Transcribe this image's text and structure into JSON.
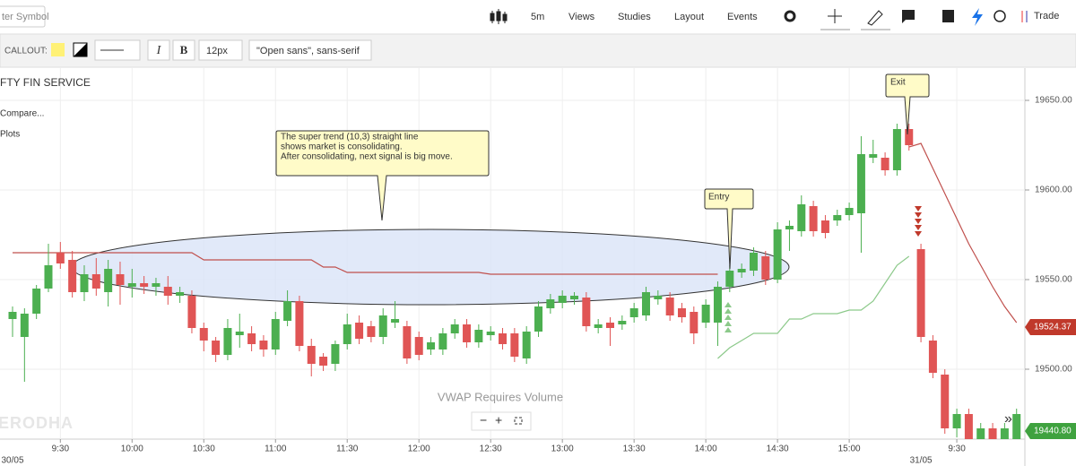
{
  "toolbar": {
    "symbol_placeholder": "ter Symbol",
    "interval": "5m",
    "menus": [
      "Views",
      "Studies",
      "Layout",
      "Events"
    ],
    "trade": "Trade"
  },
  "drawing_toolbar": {
    "label": "CALLOUT:",
    "italic": "I",
    "bold": "B",
    "font_size": "12px",
    "font_family": "\"Open sans\", sans-serif"
  },
  "legend": {
    "symbol": "FTY FIN SERVICE",
    "compare": "Compare...",
    "plots": "Plots"
  },
  "annotations": {
    "callout": [
      "The super trend (10,3) straight line",
      "shows market is consolidating.",
      "After consolidating, next signal is big move."
    ],
    "entry": "Entry",
    "exit": "Exit"
  },
  "notice": "VWAP Requires Volume",
  "watermark": "ZERODHA",
  "price_tags": [
    "19524.37",
    "19440.80"
  ],
  "chart_data": {
    "type": "candlestick",
    "categories": [
      null,
      null,
      null,
      null,
      "9:30",
      null,
      null,
      null,
      null,
      null,
      "10:00",
      null,
      null,
      null,
      null,
      null,
      "10:30",
      null,
      null,
      null,
      null,
      null,
      "11:00",
      null,
      null,
      null,
      null,
      null,
      "11:30",
      null,
      null,
      null,
      null,
      null,
      "12:00",
      null,
      null,
      null,
      null,
      null,
      "12:30",
      null,
      null,
      null,
      null,
      null,
      "13:00",
      null,
      null,
      null,
      null,
      null,
      "13:30",
      null,
      null,
      null,
      null,
      null,
      "14:00",
      null,
      null,
      null,
      null,
      null,
      "14:30",
      null,
      null,
      null,
      null,
      null,
      "15:00",
      null,
      null,
      null,
      null,
      null,
      null,
      null,
      null,
      "9:30",
      null,
      null,
      null,
      null,
      null
    ],
    "dates": [
      "30/05",
      null,
      null,
      null,
      null,
      null,
      null,
      null,
      null,
      null,
      null,
      null,
      null,
      null,
      null,
      null,
      null,
      null,
      null,
      null,
      null,
      null,
      null,
      null,
      null,
      null,
      null,
      null,
      null,
      null,
      null,
      null,
      null,
      null,
      null,
      null,
      null,
      null,
      null,
      null,
      null,
      null,
      null,
      null,
      null,
      null,
      null,
      null,
      null,
      null,
      null,
      null,
      null,
      null,
      null,
      null,
      null,
      null,
      null,
      null,
      null,
      null,
      null,
      null,
      null,
      null,
      null,
      null,
      null,
      null,
      null,
      null,
      null,
      null,
      null,
      null,
      "31/05",
      null,
      null,
      null,
      null,
      null,
      null,
      null,
      null
    ],
    "open": [
      19528,
      19518,
      19531,
      19545,
      19565,
      19561,
      19543,
      19553,
      19543,
      19553,
      19546,
      19548,
      19546,
      19546,
      19541,
      19541,
      19523,
      19516,
      19508,
      19519,
      19520,
      19516,
      19511,
      19527,
      19538,
      19513,
      19507,
      19503,
      19514,
      19526,
      19524,
      19518,
      19526,
      19524,
      19518,
      19511,
      19511,
      19520,
      19525,
      19515,
      19519,
      19520,
      19520,
      19506,
      19521,
      19534,
      19537,
      19539,
      19540,
      19523,
      19526,
      19525,
      19529,
      19530,
      19539,
      19540,
      19534,
      19532,
      19526,
      19526,
      19546,
      19554,
      19555,
      19563,
      19550,
      19578,
      19577,
      19591,
      19583,
      19583,
      19586,
      19587,
      19618,
      19618,
      19611,
      19634,
      19567,
      19516,
      19497,
      19467,
      19475,
      19461,
      19467,
      19461,
      19461
    ],
    "high": [
      19535,
      19534,
      19547,
      19570,
      19571,
      19566,
      19558,
      19562,
      19561,
      19560,
      19556,
      19552,
      19551,
      19552,
      19546,
      19544,
      19526,
      19518,
      19528,
      19531,
      19524,
      19519,
      19532,
      19544,
      19541,
      19517,
      19509,
      19516,
      19531,
      19530,
      19527,
      19534,
      19538,
      19527,
      19521,
      19518,
      19523,
      19528,
      19528,
      19525,
      19524,
      19523,
      19523,
      19524,
      19538,
      19542,
      19544,
      19543,
      19543,
      19528,
      19529,
      19530,
      19537,
      19546,
      19544,
      19543,
      19537,
      19535,
      19539,
      19549,
      19558,
      19559,
      19568,
      19566,
      19582,
      19583,
      19597,
      19594,
      19586,
      19589,
      19593,
      19630,
      19628,
      19621,
      19637,
      19637,
      19570,
      19519,
      19500,
      19478,
      19478,
      19470,
      19470,
      19470,
      19478
    ],
    "low": [
      19518,
      19493,
      19528,
      19543,
      19556,
      19540,
      19538,
      19541,
      19535,
      19536,
      19540,
      19542,
      19541,
      19536,
      19537,
      19520,
      19510,
      19504,
      19505,
      19512,
      19510,
      19507,
      19508,
      19524,
      19510,
      19496,
      19499,
      19499,
      19511,
      19514,
      19515,
      19514,
      19523,
      19503,
      19505,
      19508,
      19508,
      19517,
      19512,
      19512,
      19516,
      19511,
      19504,
      19503,
      19518,
      19531,
      19534,
      19536,
      19521,
      19520,
      19513,
      19522,
      19526,
      19527,
      19536,
      19527,
      19526,
      19514,
      19523,
      19513,
      19543,
      19551,
      19552,
      19547,
      19548,
      19566,
      19574,
      19574,
      19573,
      19580,
      19583,
      19565,
      19615,
      19608,
      19608,
      19622,
      19515,
      19495,
      19464,
      19462,
      19461,
      19461,
      19461,
      19461,
      19461
    ],
    "close": [
      19532,
      19531,
      19545,
      19558,
      19559,
      19543,
      19553,
      19545,
      19556,
      19547,
      19548,
      19546,
      19548,
      19541,
      19543,
      19523,
      19516,
      19508,
      19523,
      19521,
      19514,
      19511,
      19528,
      19538,
      19513,
      19503,
      19502,
      19514,
      19525,
      19517,
      19518,
      19530,
      19528,
      19506,
      19508,
      19515,
      19520,
      19525,
      19515,
      19522,
      19521,
      19514,
      19507,
      19521,
      19535,
      19539,
      19541,
      19541,
      19524,
      19525,
      19523,
      19527,
      19534,
      19543,
      19541,
      19530,
      19529,
      19520,
      19536,
      19546,
      19555,
      19556,
      19565,
      19550,
      19578,
      19580,
      19592,
      19577,
      19576,
      19586,
      19590,
      19620,
      19620,
      19611,
      19634,
      19625,
      19518,
      19498,
      19467,
      19475,
      19461,
      19467,
      19461,
      19467,
      19475
    ],
    "series": [
      {
        "color": "#c0504d",
        "values": [
          19565,
          19565,
          19565,
          19565,
          19565,
          19565,
          19565,
          19565,
          19565,
          19565,
          19565,
          19565,
          19565,
          19565,
          19565,
          19565,
          19561,
          19561,
          19561,
          19561,
          19561,
          19561,
          19561,
          19561,
          19561,
          19561,
          19557,
          19557,
          19554,
          19554,
          19554,
          19554,
          19554,
          19554,
          19554,
          19554,
          19554,
          19554,
          19554,
          19554,
          19553,
          19553,
          19553,
          19553,
          19553,
          19553,
          19553,
          19553,
          19553,
          19553,
          19553,
          19553,
          19553,
          19553,
          19553,
          19553,
          19553,
          19553,
          19553,
          19553,
          null,
          null,
          null,
          null,
          null,
          null,
          null,
          null,
          null,
          null,
          null,
          null,
          null,
          null,
          null,
          19624,
          19626,
          19612,
          19598,
          19584,
          19570,
          19558,
          19546,
          19535,
          19526
        ]
      },
      {
        "color": "#8cc98a",
        "values": [
          null,
          null,
          null,
          null,
          null,
          null,
          null,
          null,
          null,
          null,
          null,
          null,
          null,
          null,
          null,
          null,
          null,
          null,
          null,
          null,
          null,
          null,
          null,
          null,
          null,
          null,
          null,
          null,
          null,
          null,
          null,
          null,
          null,
          null,
          null,
          null,
          null,
          null,
          null,
          null,
          null,
          null,
          null,
          null,
          null,
          null,
          null,
          null,
          null,
          null,
          null,
          null,
          null,
          null,
          null,
          null,
          null,
          null,
          null,
          19506,
          19512,
          19516,
          19520,
          19520,
          19520,
          19528,
          19528,
          19531,
          19531,
          19531,
          19533,
          19533,
          19538,
          19548,
          19558,
          19563,
          null,
          null,
          null,
          null,
          null,
          null,
          null,
          null,
          null
        ]
      }
    ],
    "up_color": "#4caf50",
    "down_color": "#e05555",
    "ylim": [
      19461,
      19668
    ],
    "yticks": [
      {
        "value": 19500,
        "label": "19500.00"
      },
      {
        "value": 19550,
        "label": "19550.00"
      },
      {
        "value": 19600,
        "label": "19600.00"
      },
      {
        "value": 19650,
        "label": "19650.00"
      }
    ],
    "grid": true
  }
}
